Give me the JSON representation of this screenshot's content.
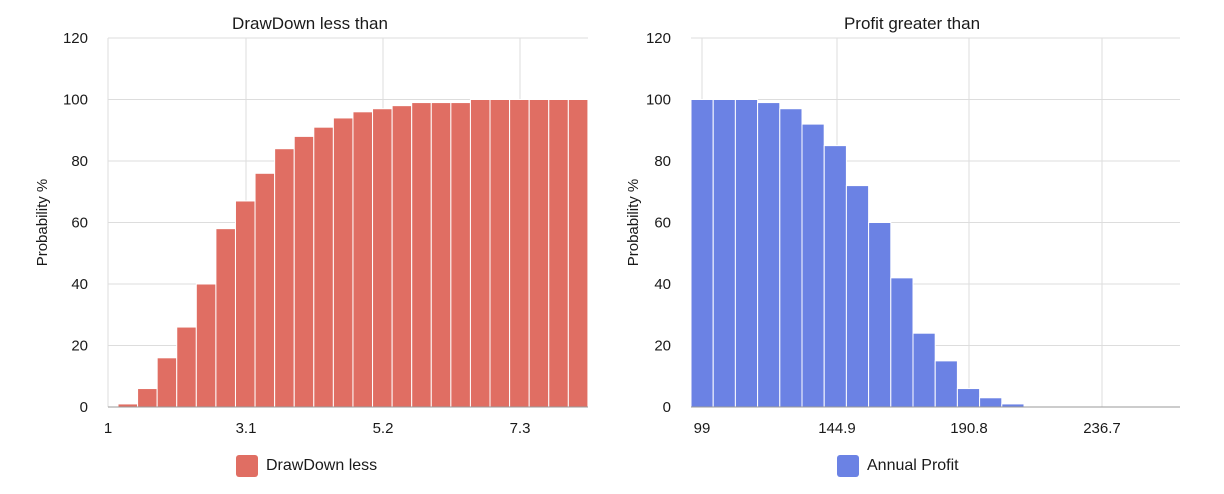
{
  "chart_data": [
    {
      "type": "bar",
      "title": "DrawDown less than",
      "ylabel": "Probability %",
      "xlabel": "",
      "ylim": [
        0,
        120
      ],
      "yticks": [
        0,
        20,
        40,
        60,
        80,
        100,
        120
      ],
      "xticks": [
        "1",
        "3.1",
        "5.2",
        "7.3"
      ],
      "grid": true,
      "legend_position": "bottom",
      "color": "#e06e63",
      "series": [
        {
          "name": "DrawDown less",
          "values": [
            1,
            6,
            16,
            26,
            40,
            58,
            67,
            76,
            84,
            88,
            91,
            94,
            96,
            97,
            98,
            99,
            99,
            99,
            100,
            100,
            100,
            100,
            100,
            100
          ]
        }
      ]
    },
    {
      "type": "bar",
      "title": "Profit greater than",
      "ylabel": "Probability %",
      "xlabel": "",
      "ylim": [
        0,
        120
      ],
      "yticks": [
        0,
        20,
        40,
        60,
        80,
        100,
        120
      ],
      "xticks": [
        "99",
        "144.9",
        "190.8",
        "236.7"
      ],
      "grid": true,
      "legend_position": "bottom",
      "color": "#6b82e4",
      "series": [
        {
          "name": "Annual Profit",
          "values": [
            100,
            100,
            100,
            99,
            97,
            92,
            85,
            72,
            60,
            42,
            24,
            15,
            6,
            3,
            1,
            0,
            0,
            0,
            0,
            0,
            0,
            0
          ]
        }
      ]
    }
  ]
}
